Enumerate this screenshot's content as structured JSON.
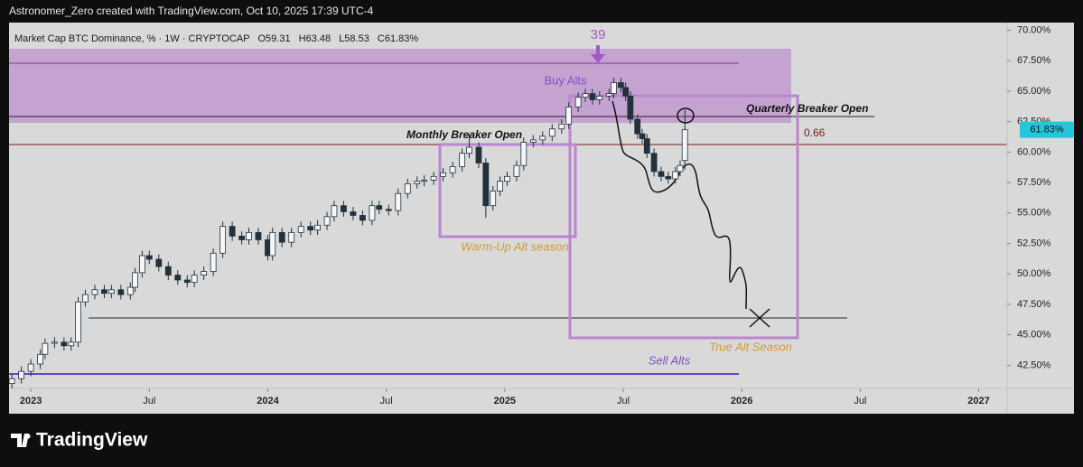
{
  "header": "Astronomer_Zero created with TradingView.com, Oct 10, 2025 17:39 UTC-4",
  "footer": "TradingView",
  "chart_data": {
    "type": "candlestick",
    "title": "Market Cap BTC Dominance, % · 1W · CRYPTOCAP",
    "legend_values": [
      "O59.31",
      "H63.48",
      "L58.53",
      "C61.83%"
    ],
    "up_color": "#f4f7f8",
    "down_color": "#22313c",
    "wick_color": "#22313c",
    "x": [
      2022.92,
      2022.96,
      2023.0,
      2023.04,
      2023.06,
      2023.1,
      2023.14,
      2023.17,
      2023.2,
      2023.23,
      2023.27,
      2023.31,
      2023.34,
      2023.38,
      2023.42,
      2023.44,
      2023.47,
      2023.5,
      2023.54,
      2023.58,
      2023.62,
      2023.66,
      2023.69,
      2023.73,
      2023.77,
      2023.81,
      2023.85,
      2023.89,
      2023.92,
      2023.96,
      2024.0,
      2024.02,
      2024.06,
      2024.1,
      2024.14,
      2024.18,
      2024.21,
      2024.25,
      2024.28,
      2024.32,
      2024.36,
      2024.4,
      2024.44,
      2024.47,
      2024.51,
      2024.55,
      2024.59,
      2024.63,
      2024.66,
      2024.7,
      2024.74,
      2024.78,
      2024.82,
      2024.85,
      2024.89,
      2024.92,
      2024.95,
      2024.98,
      2025.01,
      2025.05,
      2025.08,
      2025.12,
      2025.16,
      2025.2,
      2025.24,
      2025.27,
      2025.31,
      2025.34,
      2025.37,
      2025.4,
      2025.44,
      2025.46,
      2025.49,
      2025.51,
      2025.53,
      2025.56,
      2025.58,
      2025.6,
      2025.63,
      2025.66,
      2025.69,
      2025.72,
      2025.74,
      2025.76
    ],
    "open": [
      41.0,
      41.4,
      42.0,
      42.6,
      43.4,
      44.3,
      44.4,
      44.1,
      44.4,
      47.7,
      48.3,
      48.7,
      48.4,
      48.7,
      48.3,
      48.9,
      50.1,
      51.5,
      51.2,
      50.6,
      49.9,
      49.5,
      49.3,
      49.9,
      50.2,
      51.7,
      53.9,
      53.1,
      52.8,
      53.4,
      52.8,
      51.5,
      53.4,
      52.6,
      53.4,
      53.9,
      53.6,
      54.0,
      54.7,
      55.6,
      55.1,
      54.8,
      54.4,
      55.6,
      55.3,
      55.2,
      56.6,
      57.4,
      57.6,
      57.7,
      58.0,
      58.3,
      58.8,
      59.9,
      60.4,
      59.1,
      55.6,
      56.8,
      57.6,
      58.0,
      58.9,
      60.8,
      61.0,
      61.3,
      61.9,
      62.3,
      63.7,
      64.5,
      64.8,
      64.3,
      64.6,
      64.8,
      65.7,
      65.3,
      64.6,
      62.7,
      61.5,
      61.1,
      59.9,
      58.4,
      58.0,
      57.8,
      58.4,
      59.31
    ],
    "high": [
      41.8,
      42.4,
      43.0,
      43.8,
      44.7,
      44.8,
      44.8,
      44.8,
      48.1,
      48.7,
      49.1,
      49.1,
      49.1,
      49.1,
      49.3,
      50.5,
      51.9,
      51.9,
      51.6,
      51.0,
      50.3,
      49.9,
      50.3,
      50.6,
      52.1,
      54.3,
      54.3,
      53.5,
      53.8,
      53.8,
      53.2,
      53.8,
      53.8,
      53.8,
      54.3,
      54.3,
      54.4,
      55.1,
      56.0,
      56.0,
      55.5,
      55.2,
      56.0,
      56.0,
      55.7,
      57.0,
      57.8,
      58.0,
      58.1,
      58.4,
      58.7,
      59.2,
      60.3,
      61.5,
      60.8,
      59.5,
      57.2,
      58.0,
      58.4,
      59.3,
      61.2,
      61.4,
      61.7,
      62.3,
      62.7,
      64.1,
      64.9,
      65.2,
      65.2,
      65.0,
      65.2,
      66.1,
      66.1,
      65.7,
      65.0,
      63.1,
      61.9,
      61.5,
      60.3,
      58.8,
      58.4,
      58.8,
      59.3,
      63.48
    ],
    "low": [
      40.6,
      41.0,
      41.6,
      42.2,
      43.0,
      43.9,
      43.7,
      43.7,
      44.0,
      47.3,
      47.9,
      48.0,
      48.0,
      47.9,
      47.9,
      48.5,
      49.7,
      50.8,
      50.2,
      49.5,
      49.1,
      48.9,
      48.9,
      49.5,
      49.8,
      51.3,
      52.7,
      52.4,
      52.4,
      52.4,
      51.1,
      51.1,
      52.2,
      52.2,
      53.0,
      53.2,
      53.2,
      53.6,
      54.3,
      54.7,
      54.4,
      54.0,
      54.0,
      54.9,
      54.8,
      54.8,
      56.2,
      57.0,
      57.2,
      57.3,
      57.6,
      57.9,
      58.4,
      59.5,
      58.7,
      54.6,
      55.2,
      56.4,
      57.2,
      57.6,
      58.5,
      60.4,
      60.6,
      60.9,
      61.5,
      61.9,
      63.3,
      64.1,
      63.9,
      63.9,
      64.2,
      64.4,
      64.9,
      64.2,
      62.3,
      61.1,
      60.7,
      59.5,
      58.0,
      57.6,
      57.4,
      57.4,
      58.0,
      58.53
    ],
    "close": [
      41.4,
      42.0,
      42.6,
      43.4,
      44.3,
      44.4,
      44.1,
      44.4,
      47.7,
      48.3,
      48.7,
      48.4,
      48.7,
      48.3,
      48.9,
      50.1,
      51.5,
      51.2,
      50.6,
      49.9,
      49.5,
      49.3,
      49.9,
      50.2,
      51.7,
      53.9,
      53.1,
      52.8,
      53.4,
      52.8,
      51.5,
      53.4,
      52.6,
      53.4,
      53.9,
      53.6,
      54.0,
      54.7,
      55.6,
      55.1,
      54.8,
      54.4,
      55.6,
      55.3,
      55.2,
      56.6,
      57.4,
      57.6,
      57.7,
      58.0,
      58.3,
      58.8,
      59.9,
      60.4,
      59.1,
      55.6,
      56.8,
      57.6,
      58.0,
      58.9,
      60.8,
      61.0,
      61.3,
      61.9,
      62.3,
      63.7,
      64.5,
      64.8,
      64.3,
      64.6,
      64.8,
      65.7,
      65.3,
      64.6,
      62.7,
      61.5,
      61.1,
      59.9,
      58.4,
      58.0,
      57.8,
      58.4,
      58.9,
      61.83
    ],
    "last_price": {
      "value": 61.83,
      "label": "61.83%"
    },
    "xlim": [
      2022.908,
      2027.12
    ],
    "xticks": [
      {
        "value": 2023,
        "label": "2023"
      },
      {
        "value": 2023.5,
        "label": "Jul"
      },
      {
        "value": 2024,
        "label": "2024"
      },
      {
        "value": 2024.5,
        "label": "Jul"
      },
      {
        "value": 2025,
        "label": "2025"
      },
      {
        "value": 2025.5,
        "label": "Jul"
      },
      {
        "value": 2026,
        "label": "2026"
      },
      {
        "value": 2026.5,
        "label": "Jul"
      },
      {
        "value": 2027,
        "label": "2027"
      }
    ],
    "ylim": [
      40.6,
      70.63
    ],
    "yticks": [
      {
        "value": 42.5,
        "label": "42.50%"
      },
      {
        "value": 45,
        "label": "45.00%"
      },
      {
        "value": 47.5,
        "label": "47.50%"
      },
      {
        "value": 50,
        "label": "50.00%"
      },
      {
        "value": 52.5,
        "label": "52.50%"
      },
      {
        "value": 55,
        "label": "55.00%"
      },
      {
        "value": 57.5,
        "label": "57.50%"
      },
      {
        "value": 60,
        "label": "60.00%"
      },
      {
        "value": 62.5,
        "label": "62.50%"
      },
      {
        "value": 65,
        "label": "65.00%"
      },
      {
        "value": 67.5,
        "label": "67.50%"
      },
      {
        "value": 70,
        "label": "70.00%"
      }
    ],
    "grid": false,
    "annotations": [
      "39",
      "Buy Alts",
      "Quarterly Breaker Open",
      "Monthly Breaker Open",
      "0.66",
      "Warm-Up Alt season",
      "True Alt Season",
      "Sell Alts"
    ]
  }
}
